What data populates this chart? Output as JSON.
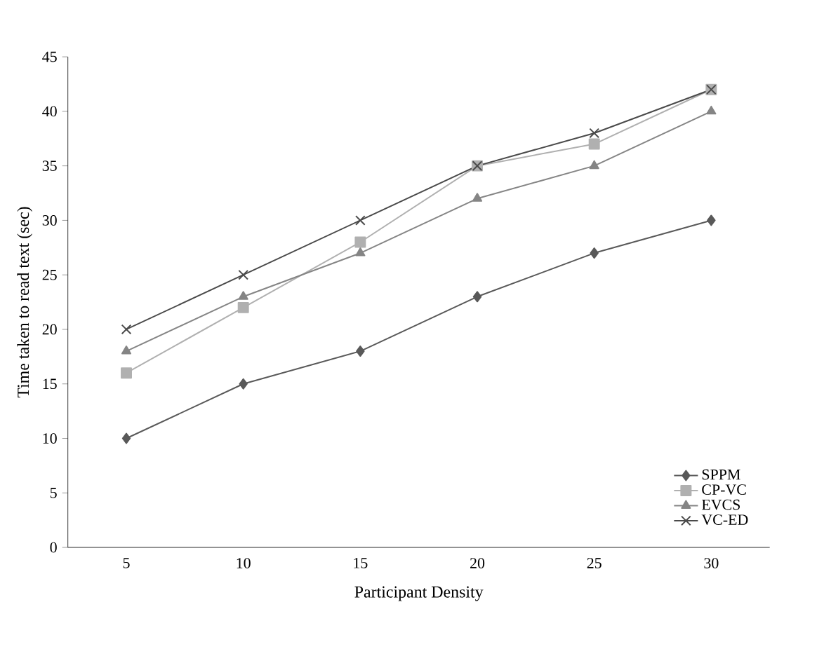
{
  "chart_data": {
    "type": "line",
    "xlabel": "Participant Density",
    "ylabel": "Time taken to read text (sec)",
    "categories": [
      "5",
      "10",
      "15",
      "20",
      "25",
      "30"
    ],
    "series": [
      {
        "name": "SPPM",
        "color": "#595959",
        "marker": "diamond",
        "values": [
          10,
          15,
          18,
          23,
          27,
          30
        ]
      },
      {
        "name": "CP-VC",
        "color": "#b0b0b0",
        "marker": "square",
        "values": [
          16,
          22,
          28,
          35,
          37,
          42
        ]
      },
      {
        "name": "EVCS",
        "color": "#858585",
        "marker": "triangle",
        "values": [
          18,
          23,
          27,
          32,
          35,
          40
        ]
      },
      {
        "name": "VC-ED",
        "color": "#4a4a4a",
        "marker": "cross",
        "values": [
          20,
          25,
          30,
          35,
          38,
          42
        ]
      }
    ],
    "ylim": [
      0,
      45
    ],
    "yticks": [
      0,
      5,
      10,
      15,
      20,
      25,
      30,
      35,
      40,
      45
    ],
    "legend": "bottom right",
    "grid": false
  }
}
